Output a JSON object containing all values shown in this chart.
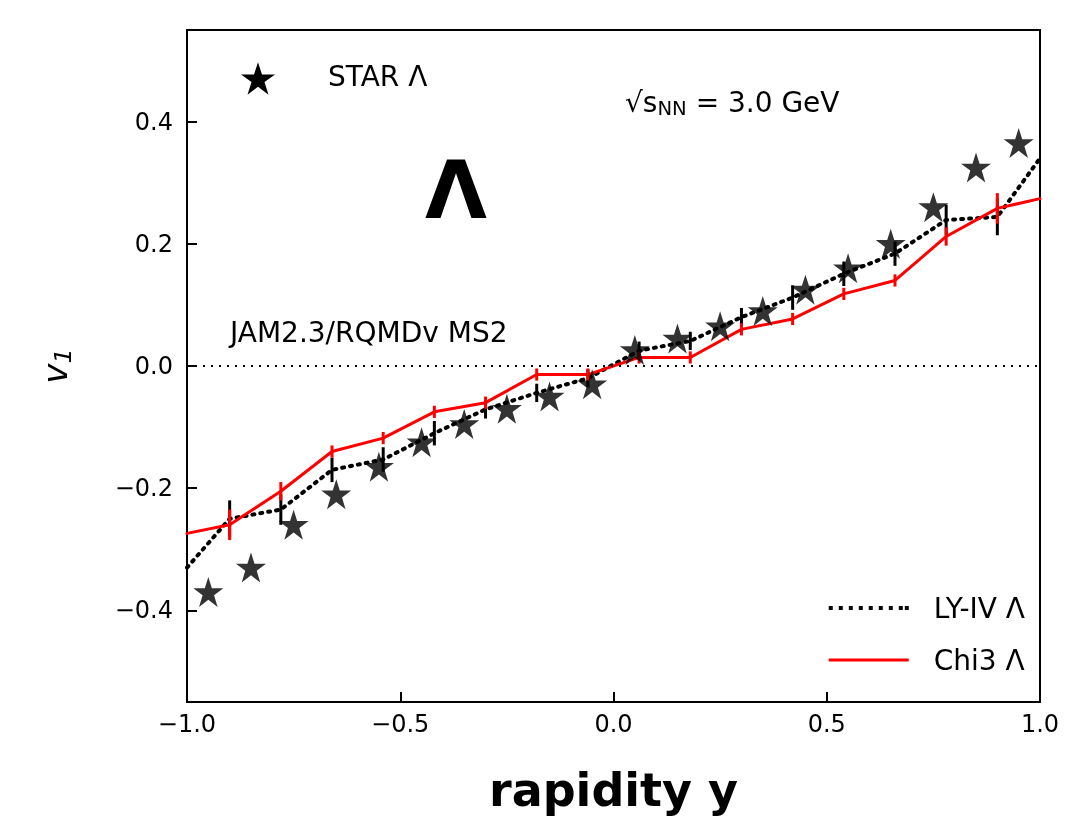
{
  "chart_data": {
    "type": "line",
    "xlabel": "rapidity y",
    "ylabel": "v$_{1}$",
    "annotations": [
      "Λ",
      "√s$_{NN}$ = 3.0 GeV",
      "JAM2.3/RQMDv MS2",
      "STAR Λ"
    ],
    "xlim": [
      -1,
      1
    ],
    "xticks": [
      {
        "value": -1,
        "label": "−1.0"
      },
      {
        "value": -0.5,
        "label": "−0.5"
      },
      {
        "value": 0,
        "label": "0.0"
      },
      {
        "value": 0.5,
        "label": "0.5"
      },
      {
        "value": 1,
        "label": "1.0"
      }
    ],
    "ylim": [
      -0.55,
      0.55
    ],
    "yticks": [
      {
        "value": -0.4,
        "label": "−0.4"
      },
      {
        "value": -0.2,
        "label": "−0.2"
      },
      {
        "value": 0,
        "label": "0.0"
      },
      {
        "value": 0.2,
        "label": "0.2"
      },
      {
        "value": 0.4,
        "label": "0.4"
      }
    ],
    "grid": false,
    "legend": "bottom right",
    "ref_lines": [
      {
        "axis": "y",
        "value": 0,
        "label": null,
        "color": "#000000",
        "line_style": "dotted"
      }
    ],
    "series": [
      {
        "type": "scatter",
        "marker": "star",
        "color": "#000000",
        "x": [
          -0.95,
          -0.85,
          -0.75,
          -0.65,
          -0.55,
          -0.45,
          -0.35,
          -0.25,
          -0.15,
          -0.05,
          0.05,
          0.15,
          0.25,
          0.35,
          0.45,
          0.55,
          0.65,
          0.75,
          0.85,
          0.95
        ],
        "values": [
          -0.37,
          -0.33,
          -0.26,
          -0.21,
          -0.165,
          -0.125,
          -0.095,
          -0.07,
          -0.05,
          -0.03,
          0.026,
          0.045,
          0.065,
          0.09,
          0.125,
          0.16,
          0.2,
          0.26,
          0.325,
          0.365
        ]
      },
      {
        "name": "LY-IV Λ",
        "type": "line",
        "marker": "none",
        "line_style": "dotted",
        "color": "#000000",
        "x": [
          -1,
          -0.9,
          -0.78,
          -0.66,
          -0.54,
          -0.42,
          -0.3,
          -0.18,
          -0.06,
          0.06,
          0.18,
          0.3,
          0.42,
          0.54,
          0.66,
          0.78,
          0.9,
          1
        ],
        "values": [
          -0.33,
          -0.25,
          -0.235,
          -0.17,
          -0.153,
          -0.11,
          -0.071,
          -0.044,
          -0.02,
          0.025,
          0.041,
          0.08,
          0.112,
          0.151,
          0.184,
          0.239,
          0.244,
          0.34
        ],
        "errors": [
          null,
          0.03,
          0.025,
          0.02,
          0.02,
          0.02,
          0.015,
          0.015,
          0.015,
          0.015,
          0.015,
          0.015,
          0.02,
          0.02,
          0.02,
          0.025,
          0.03,
          null
        ]
      },
      {
        "name": "Chi3 Λ",
        "type": "line",
        "marker": "none",
        "line_style": "solid",
        "color": "#ff0000",
        "x": [
          -1,
          -0.9,
          -0.78,
          -0.66,
          -0.54,
          -0.42,
          -0.3,
          -0.18,
          -0.06,
          0.06,
          0.18,
          0.3,
          0.42,
          0.54,
          0.66,
          0.78,
          0.9,
          1
        ],
        "values": [
          -0.274,
          -0.26,
          -0.205,
          -0.14,
          -0.118,
          -0.075,
          -0.06,
          -0.014,
          -0.014,
          0.014,
          0.014,
          0.06,
          0.077,
          0.118,
          0.14,
          0.212,
          0.258,
          0.274
        ],
        "errors": [
          null,
          0.025,
          0.015,
          0.01,
          0.01,
          0.01,
          0.01,
          0.01,
          0.01,
          0.01,
          0.01,
          0.01,
          0.01,
          0.01,
          0.01,
          0.015,
          0.025,
          null
        ]
      }
    ]
  }
}
